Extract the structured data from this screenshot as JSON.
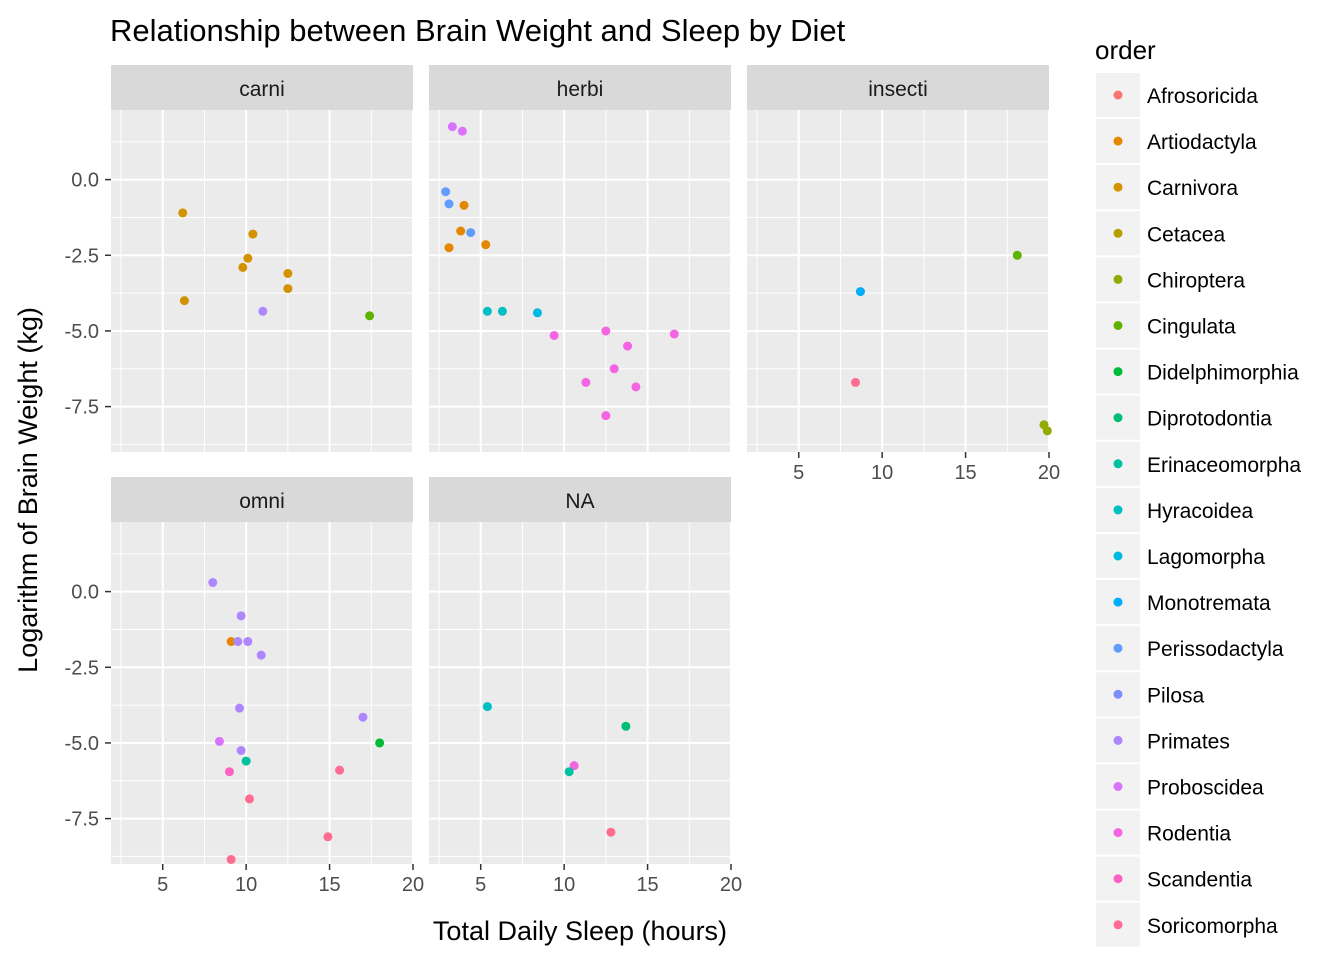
{
  "chart_data": {
    "type": "scatter",
    "title": "Relationship between Brain Weight and Sleep by Diet",
    "xlabel": "Total Daily Sleep (hours)",
    "ylabel": "Logarithm of Brain Weight (kg)",
    "xlim": [
      1.9,
      20.0
    ],
    "ylim": [
      -9.0,
      2.3
    ],
    "x_ticks": [
      5,
      10,
      15,
      20
    ],
    "y_ticks": [
      0.0,
      -2.5,
      -5.0,
      -7.5
    ],
    "x_tick_labels": [
      "5",
      "10",
      "15",
      "20"
    ],
    "y_tick_labels": [
      "0.0",
      "-2.5",
      "-5.0",
      "-7.5"
    ],
    "grid": true,
    "legend": {
      "title": "order",
      "placement": "right",
      "entries": [
        {
          "name": "Afrosoricida",
          "color": "#F8766D"
        },
        {
          "name": "Artiodactyla",
          "color": "#E58700"
        },
        {
          "name": "Carnivora",
          "color": "#D39200"
        },
        {
          "name": "Cetacea",
          "color": "#B79F00"
        },
        {
          "name": "Chiroptera",
          "color": "#93AA00"
        },
        {
          "name": "Cingulata",
          "color": "#5EB300"
        },
        {
          "name": "Didelphimorphia",
          "color": "#00BA38"
        },
        {
          "name": "Diprotodontia",
          "color": "#00BF74"
        },
        {
          "name": "Erinaceomorpha",
          "color": "#00C19F"
        },
        {
          "name": "Hyracoidea",
          "color": "#00BFC4"
        },
        {
          "name": "Lagomorpha",
          "color": "#00B9E3"
        },
        {
          "name": "Monotremata",
          "color": "#00ADFA"
        },
        {
          "name": "Perissodactyla",
          "color": "#619CFF"
        },
        {
          "name": "Pilosa",
          "color": "#7C8FFF"
        },
        {
          "name": "Primates",
          "color": "#AE87FF"
        },
        {
          "name": "Proboscidea",
          "color": "#DB72FB"
        },
        {
          "name": "Rodentia",
          "color": "#F564E3"
        },
        {
          "name": "Scandentia",
          "color": "#FF61C3"
        },
        {
          "name": "Soricomorpha",
          "color": "#FF6C91"
        }
      ]
    },
    "facets": [
      {
        "label": "carni",
        "points": [
          {
            "x": 6.2,
            "y": -1.1,
            "order": "Carnivora"
          },
          {
            "x": 6.3,
            "y": -4.0,
            "order": "Carnivora"
          },
          {
            "x": 10.4,
            "y": -1.8,
            "order": "Carnivora"
          },
          {
            "x": 10.1,
            "y": -2.6,
            "order": "Carnivora"
          },
          {
            "x": 9.8,
            "y": -2.9,
            "order": "Carnivora"
          },
          {
            "x": 12.5,
            "y": -3.1,
            "order": "Carnivora"
          },
          {
            "x": 12.5,
            "y": -3.6,
            "order": "Carnivora"
          },
          {
            "x": 11.0,
            "y": -4.35,
            "order": "Primates"
          },
          {
            "x": 17.4,
            "y": -4.5,
            "order": "Cingulata"
          }
        ]
      },
      {
        "label": "herbi",
        "points": [
          {
            "x": 3.3,
            "y": 1.75,
            "order": "Proboscidea"
          },
          {
            "x": 3.9,
            "y": 1.6,
            "order": "Proboscidea"
          },
          {
            "x": 2.9,
            "y": -0.4,
            "order": "Perissodactyla"
          },
          {
            "x": 3.1,
            "y": -0.8,
            "order": "Perissodactyla"
          },
          {
            "x": 4.0,
            "y": -0.85,
            "order": "Artiodactyla"
          },
          {
            "x": 3.8,
            "y": -1.7,
            "order": "Artiodactyla"
          },
          {
            "x": 4.4,
            "y": -1.75,
            "order": "Perissodactyla"
          },
          {
            "x": 3.1,
            "y": -2.25,
            "order": "Artiodactyla"
          },
          {
            "x": 5.3,
            "y": -2.15,
            "order": "Artiodactyla"
          },
          {
            "x": 5.4,
            "y": -4.35,
            "order": "Hyracoidea"
          },
          {
            "x": 6.3,
            "y": -4.35,
            "order": "Hyracoidea"
          },
          {
            "x": 8.4,
            "y": -4.4,
            "order": "Lagomorpha"
          },
          {
            "x": 9.4,
            "y": -5.15,
            "order": "Rodentia"
          },
          {
            "x": 12.5,
            "y": -5.0,
            "order": "Rodentia"
          },
          {
            "x": 13.8,
            "y": -5.5,
            "order": "Rodentia"
          },
          {
            "x": 16.6,
            "y": -5.1,
            "order": "Rodentia"
          },
          {
            "x": 13.0,
            "y": -6.25,
            "order": "Rodentia"
          },
          {
            "x": 11.3,
            "y": -6.7,
            "order": "Rodentia"
          },
          {
            "x": 14.3,
            "y": -6.85,
            "order": "Rodentia"
          },
          {
            "x": 12.5,
            "y": -7.8,
            "order": "Rodentia"
          }
        ]
      },
      {
        "label": "insecti",
        "points": [
          {
            "x": 18.1,
            "y": -2.5,
            "order": "Cingulata"
          },
          {
            "x": 8.7,
            "y": -3.7,
            "order": "Monotremata"
          },
          {
            "x": 8.4,
            "y": -6.7,
            "order": "Soricomorpha"
          },
          {
            "x": 19.7,
            "y": -8.1,
            "order": "Chiroptera"
          },
          {
            "x": 19.9,
            "y": -8.3,
            "order": "Chiroptera"
          }
        ]
      },
      {
        "label": "omni",
        "points": [
          {
            "x": 8.0,
            "y": 0.3,
            "order": "Primates"
          },
          {
            "x": 9.7,
            "y": -0.8,
            "order": "Primates"
          },
          {
            "x": 9.1,
            "y": -1.65,
            "order": "Artiodactyla"
          },
          {
            "x": 9.5,
            "y": -1.65,
            "order": "Primates"
          },
          {
            "x": 10.1,
            "y": -1.65,
            "order": "Primates"
          },
          {
            "x": 10.9,
            "y": -2.1,
            "order": "Primates"
          },
          {
            "x": 9.6,
            "y": -3.85,
            "order": "Primates"
          },
          {
            "x": 17.0,
            "y": -4.15,
            "order": "Primates"
          },
          {
            "x": 8.4,
            "y": -4.95,
            "order": "Proboscidea"
          },
          {
            "x": 9.7,
            "y": -5.25,
            "order": "Primates"
          },
          {
            "x": 18.0,
            "y": -5.0,
            "order": "Didelphimorphia"
          },
          {
            "x": 10.0,
            "y": -5.6,
            "order": "Erinaceomorpha"
          },
          {
            "x": 9.0,
            "y": -5.95,
            "order": "Scandentia"
          },
          {
            "x": 15.6,
            "y": -5.9,
            "order": "Soricomorpha"
          },
          {
            "x": 10.2,
            "y": -6.85,
            "order": "Soricomorpha"
          },
          {
            "x": 14.9,
            "y": -8.1,
            "order": "Soricomorpha"
          },
          {
            "x": 9.1,
            "y": -8.85,
            "order": "Soricomorpha"
          }
        ]
      },
      {
        "label": "NA",
        "points": [
          {
            "x": 5.4,
            "y": -3.8,
            "order": "Hyracoidea"
          },
          {
            "x": 13.7,
            "y": -4.45,
            "order": "Diprotodontia"
          },
          {
            "x": 10.6,
            "y": -5.75,
            "order": "Rodentia"
          },
          {
            "x": 10.3,
            "y": -5.95,
            "order": "Erinaceomorpha"
          },
          {
            "x": 12.8,
            "y": -7.95,
            "order": "Soricomorpha"
          }
        ]
      }
    ]
  }
}
